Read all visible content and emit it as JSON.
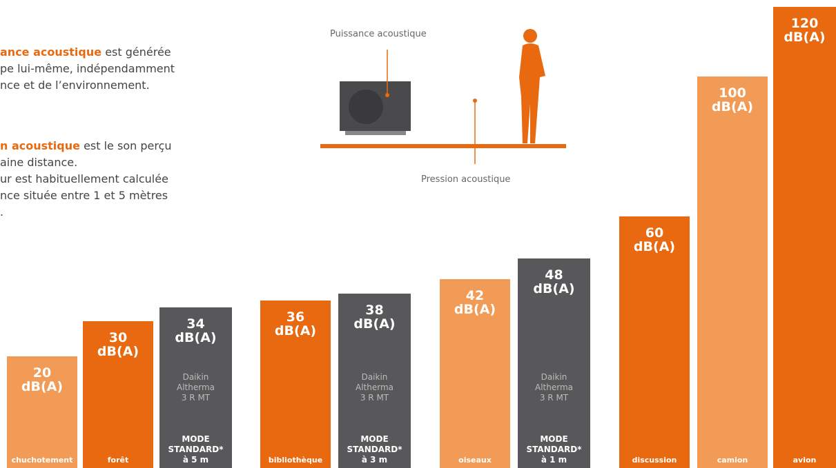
{
  "chart_data": {
    "type": "bar",
    "intro_power": {
      "bold": "ance acoustique",
      "rest": " est générée",
      "lines": [
        "pe lui-même, indépendamment",
        "nce et de l’environnement."
      ]
    },
    "intro_pressure": {
      "bold": "n acoustique",
      "rest": " est le son perçu",
      "lines": [
        "aine distance.",
        "ur est habituellement calculée",
        "nce située entre 1 et 5 mètres",
        "."
      ]
    },
    "diagram_power_label": "Puissance acoustique",
    "diagram_pressure_label": "Pression acoustique",
    "categories": [
      "chuchotement",
      "forêt",
      "MODE\nSTANDARD*\nà 5 m",
      "bibliothèque",
      "MODE\nSTANDARD*\nà 3 m",
      "oiseaux",
      "MODE\nSTANDARD*\nà 1 m",
      "discussion",
      "camion",
      "avion"
    ],
    "values": [
      20,
      30,
      34,
      36,
      38,
      42,
      48,
      60,
      100,
      120
    ],
    "value_labels": [
      "20\ndB(A)",
      "30\ndB(A)",
      "34\ndB(A)",
      "36\ndB(A)",
      "38\ndB(A)",
      "42\ndB(A)",
      "48\ndB(A)",
      "60\ndB(A)",
      "100\ndB(A)",
      "120\ndB(A)"
    ],
    "product_labels": [
      null,
      null,
      "Daikin\nAltherma\n3 R MT",
      null,
      "Daikin\nAltherma\n3 R MT",
      null,
      "Daikin\nAltherma\n3 R MT",
      null,
      null,
      null
    ],
    "colors": [
      "#f29b57",
      "#e8690f",
      "#58585a",
      "#e8690f",
      "#58585a",
      "#f29b57",
      "#58585a",
      "#e8690f",
      "#f29b57",
      "#e8690f"
    ],
    "ylim": [
      -12,
      120
    ]
  }
}
